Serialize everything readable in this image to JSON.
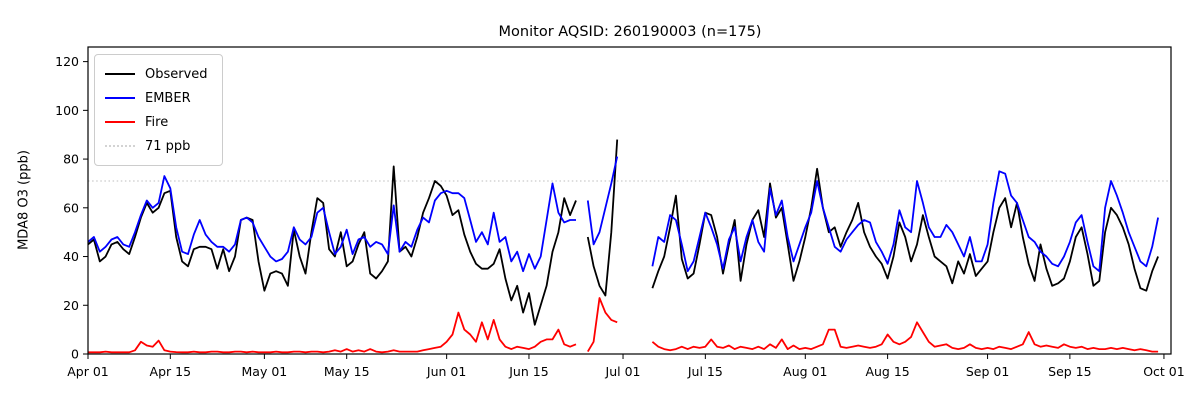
{
  "figure": {
    "title": "Monitor AQSID: 260190003 (n=175)",
    "ylabel": "MDA8 O3 (ppb)"
  },
  "chart_data": {
    "type": "line",
    "title": "Monitor AQSID: 260190003 (n=175)",
    "xlabel": "",
    "ylabel": "MDA8 O3 (ppb)",
    "grid": false,
    "legend_position": "upper-left",
    "ylim": [
      0,
      126
    ],
    "yticks": [
      0,
      20,
      40,
      60,
      80,
      100,
      120
    ],
    "x_unit": "days since Apr 01",
    "xlim": [
      0,
      184.2
    ],
    "xticks": [
      {
        "label": "Apr 01",
        "day": 0
      },
      {
        "label": "Apr 15",
        "day": 14
      },
      {
        "label": "May 01",
        "day": 30
      },
      {
        "label": "May 15",
        "day": 44
      },
      {
        "label": "Jun 01",
        "day": 61
      },
      {
        "label": "Jun 15",
        "day": 75
      },
      {
        "label": "Jul 01",
        "day": 91
      },
      {
        "label": "Jul 15",
        "day": 105
      },
      {
        "label": "Aug 01",
        "day": 122
      },
      {
        "label": "Aug 15",
        "day": 136
      },
      {
        "label": "Sep 01",
        "day": 153
      },
      {
        "label": "Sep 15",
        "day": 167
      },
      {
        "label": "Oct 01",
        "day": 183
      }
    ],
    "threshold": {
      "label": "71 ppb",
      "value": 71,
      "color": "#d3d3d3",
      "style": "dotted"
    },
    "series": [
      {
        "name": "Observed",
        "color": "#000000",
        "values": [
          45,
          47,
          38,
          40,
          45,
          46,
          43,
          41,
          48,
          56,
          62,
          58,
          60,
          66,
          67,
          48,
          38,
          36,
          43,
          44,
          44,
          43,
          35,
          43,
          34,
          40,
          55,
          56,
          55,
          38,
          26,
          33,
          34,
          33,
          28,
          51,
          40,
          33,
          50,
          64,
          62,
          43,
          40,
          50,
          36,
          38,
          45,
          50,
          33,
          31,
          34,
          38,
          77,
          42,
          44,
          40,
          48,
          58,
          64,
          71,
          69,
          65,
          57,
          59,
          49,
          42,
          37,
          35,
          35,
          37,
          43,
          31,
          22,
          28,
          17,
          25,
          12,
          20,
          28,
          42,
          50,
          64,
          57,
          63,
          null,
          48,
          36,
          28,
          24,
          50,
          88,
          null,
          null,
          null,
          null,
          null,
          27,
          34,
          40,
          52,
          65,
          39,
          31,
          33,
          45,
          58,
          57,
          48,
          33,
          45,
          55,
          30,
          45,
          55,
          59,
          48,
          70,
          56,
          60,
          45,
          30,
          38,
          48,
          60,
          76,
          60,
          50,
          52,
          44,
          50,
          55,
          62,
          50,
          44,
          40,
          37,
          31,
          40,
          54,
          48,
          38,
          45,
          57,
          48,
          40,
          38,
          36,
          29,
          38,
          33,
          41,
          32,
          35,
          38,
          50,
          60,
          64,
          52,
          62,
          48,
          37,
          30,
          45,
          35,
          28,
          29,
          31,
          38,
          48,
          52,
          41,
          28,
          30,
          50,
          60,
          57,
          52,
          45,
          35,
          27,
          26,
          34,
          40
        ]
      },
      {
        "name": "EMBER",
        "color": "#0000ff",
        "values": [
          46,
          48,
          42,
          44,
          47,
          48,
          45,
          44,
          50,
          57,
          63,
          60,
          62,
          73,
          68,
          52,
          42,
          41,
          49,
          55,
          49,
          46,
          44,
          44,
          42,
          45,
          55,
          56,
          54,
          48,
          44,
          40,
          38,
          39,
          42,
          52,
          47,
          45,
          48,
          58,
          60,
          50,
          41,
          44,
          51,
          41,
          47,
          48,
          44,
          46,
          45,
          41,
          61,
          42,
          46,
          44,
          51,
          56,
          54,
          63,
          66,
          67,
          66,
          66,
          64,
          55,
          46,
          50,
          45,
          58,
          46,
          48,
          38,
          42,
          34,
          41,
          35,
          40,
          55,
          70,
          58,
          54,
          55,
          55,
          null,
          63,
          45,
          50,
          60,
          70,
          81,
          null,
          null,
          null,
          null,
          null,
          36,
          48,
          46,
          57,
          55,
          45,
          34,
          38,
          48,
          58,
          52,
          45,
          35,
          47,
          52,
          38,
          48,
          55,
          46,
          42,
          68,
          57,
          63,
          48,
          38,
          45,
          52,
          58,
          71,
          60,
          52,
          44,
          42,
          47,
          50,
          53,
          55,
          54,
          46,
          42,
          37,
          45,
          59,
          52,
          50,
          71,
          62,
          52,
          48,
          48,
          53,
          50,
          45,
          40,
          48,
          38,
          38,
          45,
          62,
          75,
          74,
          65,
          62,
          55,
          48,
          46,
          42,
          40,
          37,
          36,
          40,
          46,
          54,
          57,
          46,
          36,
          34,
          60,
          71,
          65,
          58,
          50,
          44,
          38,
          36,
          44,
          56
        ]
      },
      {
        "name": "Fire",
        "color": "#ff0000",
        "values": [
          0.7,
          0.7,
          0.7,
          1,
          0.7,
          0.7,
          0.7,
          0.7,
          1.5,
          5,
          3.5,
          3,
          5.5,
          1.5,
          1,
          0.8,
          0.7,
          0.7,
          1,
          0.7,
          0.7,
          1,
          1,
          0.7,
          0.7,
          1,
          1,
          0.7,
          1,
          0.7,
          0.7,
          0.7,
          1,
          0.7,
          0.7,
          1,
          1,
          0.7,
          1,
          1,
          0.7,
          1,
          1.5,
          1,
          2,
          1,
          1.5,
          1,
          2,
          1,
          0.7,
          1,
          1.5,
          1,
          1,
          1,
          1,
          1.5,
          2,
          2.5,
          3,
          5,
          8,
          17,
          10,
          8,
          5,
          13,
          6,
          14,
          6,
          3,
          2,
          3,
          2.5,
          2,
          3,
          5,
          6,
          6,
          10,
          4,
          3,
          4,
          null,
          1,
          5,
          23,
          17,
          14,
          13,
          null,
          null,
          null,
          null,
          null,
          5,
          3,
          2,
          1.5,
          2,
          3,
          2,
          3,
          2.5,
          3,
          6,
          3,
          2.5,
          3.5,
          2,
          3,
          2.5,
          2,
          3,
          2,
          4,
          2.5,
          6,
          2,
          3.5,
          2,
          2.5,
          2,
          3,
          4,
          10,
          10,
          3,
          2.5,
          3,
          3.5,
          3,
          2.5,
          3,
          4,
          8,
          5,
          4,
          5,
          7,
          13,
          9,
          5,
          3,
          3.5,
          4,
          2.5,
          2,
          2.5,
          4,
          2.5,
          2,
          2.5,
          2,
          3,
          2.5,
          2,
          3,
          4,
          9,
          4,
          3,
          3.5,
          3,
          2.5,
          4,
          3,
          2.5,
          3,
          2,
          2.5,
          2,
          2,
          2.5,
          2,
          2.5,
          2,
          1.5,
          2,
          1.5,
          1,
          1
        ]
      }
    ]
  }
}
